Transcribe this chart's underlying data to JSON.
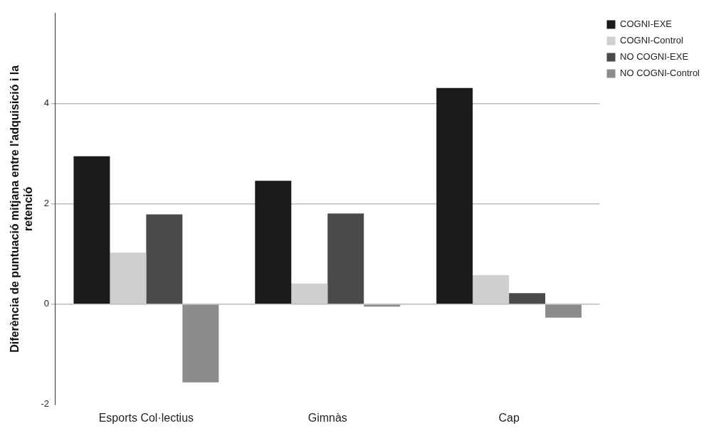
{
  "chart_data": {
    "type": "bar",
    "ylabel": "Diferència de puntuació mitjana entre l'adquisició i la retenció",
    "categories": [
      "Esports Col·lectius",
      "Gimnàs",
      "Cap"
    ],
    "series": [
      {
        "name": "COGNI-EXE",
        "color": "#1a1a1a",
        "values": [
          2.95,
          2.46,
          4.31
        ]
      },
      {
        "name": "COGNI-Control",
        "color": "#cfcfcf",
        "values": [
          1.03,
          0.41,
          0.58
        ]
      },
      {
        "name": "NO COGNI-EXE",
        "color": "#4a4a4a",
        "values": [
          1.79,
          1.81,
          0.22
        ]
      },
      {
        "name": "NO COGNI-Control",
        "color": "#8c8c8c",
        "values": [
          -1.56,
          -0.05,
          -0.27
        ]
      }
    ],
    "ylim": [
      -2,
      5.8
    ],
    "yticks": [
      -2,
      0,
      2,
      4
    ],
    "grid": "y",
    "legend": "top right"
  }
}
